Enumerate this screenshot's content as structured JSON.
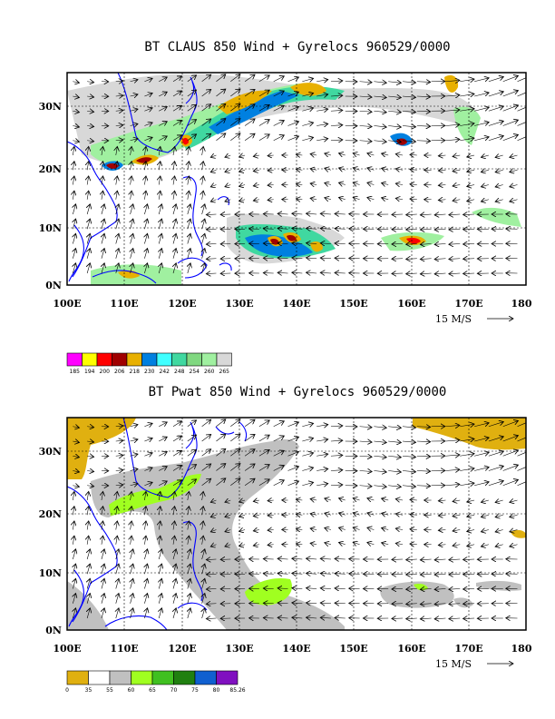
{
  "chart_data": [
    {
      "type": "map",
      "title": "BT CLAUS 850 Wind + Gyrelocs 960529/0000",
      "x_ticks": [
        "100E",
        "110E",
        "120E",
        "130E",
        "140E",
        "150E",
        "160E",
        "170E",
        "180"
      ],
      "y_ticks": [
        "0N",
        "10N",
        "20N",
        "30N"
      ],
      "xlim": [
        100,
        180
      ],
      "ylim": [
        0,
        36
      ],
      "grid": true,
      "reference_vector": "15 M/S",
      "colorbar": {
        "labels": [
          "185",
          "194",
          "200",
          "206",
          "218",
          "230",
          "242",
          "248",
          "254",
          "260",
          "265"
        ],
        "colors": [
          "#ff00ff",
          "#ffff00",
          "#ff0000",
          "#a00000",
          "#e8b000",
          "#0080e0",
          "#40ffff",
          "#40d8a0",
          "#80d880",
          "#a0f0a0",
          "#d8d8d8"
        ]
      }
    },
    {
      "type": "map",
      "title": "BT Pwat 850 Wind + Gyrelocs 960529/0000",
      "x_ticks": [
        "100E",
        "110E",
        "120E",
        "130E",
        "140E",
        "150E",
        "160E",
        "170E",
        "180"
      ],
      "y_ticks": [
        "0N",
        "10N",
        "20N",
        "30N"
      ],
      "xlim": [
        100,
        180
      ],
      "ylim": [
        0,
        36
      ],
      "grid": true,
      "reference_vector": "15 M/S",
      "colorbar": {
        "labels": [
          "0",
          "35",
          "55",
          "60",
          "65",
          "70",
          "75",
          "80",
          "85.26"
        ],
        "colors": [
          "#e0b010",
          "#ffffff",
          "#c0c0c0",
          "#a0ff20",
          "#40c020",
          "#208010",
          "#1060d0",
          "#8010c0"
        ]
      }
    }
  ]
}
